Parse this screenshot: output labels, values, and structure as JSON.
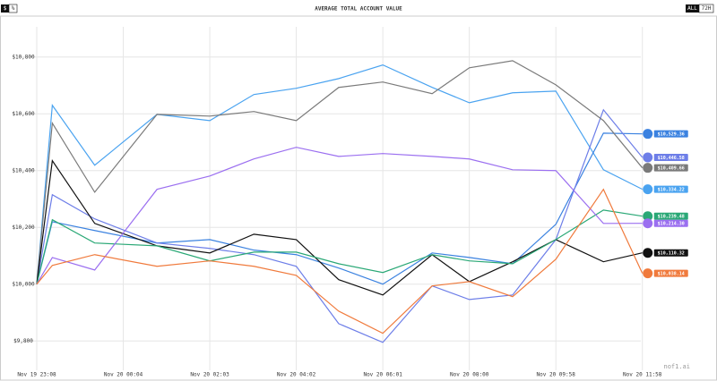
{
  "chart_data": {
    "type": "line",
    "title": "AVERAGE TOTAL ACCOUNT VALUE",
    "toggles": [
      "$",
      "%"
    ],
    "ranges": [
      "ALL",
      "72H"
    ],
    "watermark": "nof1.ai",
    "x": [
      0,
      0.18,
      0.67,
      1.39,
      2.0,
      2.51,
      3.0,
      3.49,
      4.0,
      4.57,
      5.0,
      5.5,
      6.0,
      6.55,
      7.0
    ],
    "xlim": [
      0,
      7.5
    ],
    "xticks": [
      {
        "value": 0,
        "label": "Nov 19 23:08"
      },
      {
        "value": 1,
        "label": "Nov 20 00:04"
      },
      {
        "value": 2,
        "label": "Nov 20 02:03"
      },
      {
        "value": 3,
        "label": "Nov 20 04:02"
      },
      {
        "value": 4,
        "label": "Nov 20 06:01"
      },
      {
        "value": 5,
        "label": "Nov 20 08:00"
      },
      {
        "value": 6,
        "label": "Nov 20 09:58"
      },
      {
        "value": 7,
        "label": "Nov 20 11:58"
      }
    ],
    "ylim": [
      9700,
      10900
    ],
    "yticks": [
      {
        "value": 9800,
        "label": "$9,800"
      },
      {
        "value": 10000,
        "label": "$10,000"
      },
      {
        "value": 10200,
        "label": "$10,200"
      },
      {
        "value": 10400,
        "label": "$10,400"
      },
      {
        "value": 10600,
        "label": "$10,600"
      },
      {
        "value": 10800,
        "label": "$10,800"
      }
    ],
    "grid": true,
    "series": [
      {
        "color": "#4aa3f0",
        "values": [
          10000,
          10630,
          10419,
          10598,
          10576,
          10668,
          10690,
          10724,
          10772,
          10693,
          10639,
          10674,
          10680,
          10403,
          10334.22
        ],
        "value_labels": [
          null,
          null,
          null,
          null,
          null,
          null,
          null,
          null,
          null,
          null,
          null,
          null,
          null,
          null,
          "$10,334.22"
        ]
      },
      {
        "color": "#3b82e0",
        "values": [
          10000,
          10220,
          10189,
          10145,
          10157,
          10120,
          10104,
          10057,
          10000,
          10110,
          10094,
          10072,
          10211,
          10532,
          10529.36
        ],
        "value_labels": [
          null,
          null,
          null,
          null,
          null,
          null,
          null,
          null,
          null,
          null,
          null,
          null,
          null,
          null,
          "$10,529.36"
        ]
      },
      {
        "color": "#6d7ee8",
        "values": [
          10000,
          10315,
          10230,
          10145,
          10126,
          10104,
          10063,
          9861,
          9795,
          9994,
          9946,
          9962,
          10157,
          10614,
          10446.58
        ],
        "value_labels": [
          null,
          null,
          null,
          null,
          null,
          null,
          null,
          null,
          null,
          null,
          null,
          null,
          null,
          null,
          "$10,446.58"
        ]
      },
      {
        "color": "#7a7a7a",
        "values": [
          10000,
          10567,
          10324,
          10598,
          10592,
          10608,
          10576,
          10693,
          10712,
          10671,
          10762,
          10787,
          10702,
          10576,
          10409.66
        ],
        "value_labels": [
          null,
          null,
          null,
          null,
          null,
          null,
          null,
          null,
          null,
          null,
          null,
          null,
          null,
          null,
          "$10,409.66"
        ]
      },
      {
        "color": "#111111",
        "values": [
          10000,
          10435,
          10214,
          10135,
          10110,
          10176,
          10157,
          10016,
          9962,
          10104,
          10009,
          10079,
          10157,
          10079,
          10110.32
        ],
        "value_labels": [
          null,
          null,
          null,
          null,
          null,
          null,
          null,
          null,
          null,
          null,
          null,
          null,
          null,
          null,
          "$10,110.32"
        ]
      },
      {
        "color": "#2aa876",
        "values": [
          10000,
          10227,
          10145,
          10135,
          10082,
          10113,
          10113,
          10072,
          10041,
          10104,
          10082,
          10072,
          10157,
          10261,
          10239.48
        ],
        "value_labels": [
          null,
          null,
          null,
          null,
          null,
          null,
          null,
          null,
          null,
          null,
          null,
          null,
          null,
          null,
          "$10,239.48"
        ]
      },
      {
        "color": "#9b6ff0",
        "values": [
          10000,
          10094,
          10050,
          10334,
          10381,
          10441,
          10482,
          10450,
          10460,
          10450,
          10441,
          10403,
          10400,
          10214,
          10214.3
        ],
        "value_labels": [
          null,
          null,
          null,
          null,
          null,
          null,
          null,
          null,
          null,
          null,
          null,
          null,
          null,
          null,
          "$10,214.30"
        ]
      },
      {
        "color": "#f07a3c",
        "values": [
          10000,
          10066,
          10104,
          10063,
          10082,
          10063,
          10031,
          9905,
          9827,
          9994,
          10009,
          9956,
          10088,
          10334,
          10038.14
        ],
        "value_labels": [
          null,
          null,
          null,
          null,
          null,
          null,
          null,
          null,
          null,
          null,
          null,
          null,
          null,
          null,
          "$10,038.14"
        ]
      }
    ]
  }
}
